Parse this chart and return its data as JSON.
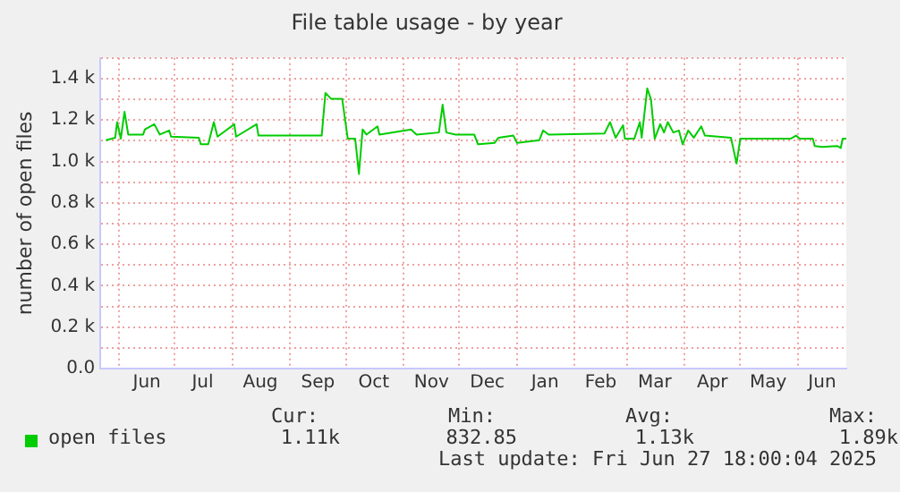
{
  "chart_data": {
    "type": "line",
    "title": "File table usage - by year",
    "ylabel": "number of open files",
    "xlim": [
      "2024-05-22",
      "2025-06-27"
    ],
    "xticks": [
      {
        "value": "2024-06-01",
        "label": null
      },
      {
        "value": "2024-06-16",
        "label": "Jun"
      },
      {
        "value": "2024-07-01",
        "label": null
      },
      {
        "value": "2024-07-16",
        "label": "Jul"
      },
      {
        "value": "2024-08-01",
        "label": null
      },
      {
        "value": "2024-08-16",
        "label": "Aug"
      },
      {
        "value": "2024-09-01",
        "label": null
      },
      {
        "value": "2024-09-16",
        "label": "Sep"
      },
      {
        "value": "2024-10-01",
        "label": null
      },
      {
        "value": "2024-10-16",
        "label": "Oct"
      },
      {
        "value": "2024-11-01",
        "label": null
      },
      {
        "value": "2024-11-16",
        "label": "Nov"
      },
      {
        "value": "2024-12-01",
        "label": null
      },
      {
        "value": "2024-12-16",
        "label": "Dec"
      },
      {
        "value": "2025-01-01",
        "label": null
      },
      {
        "value": "2025-01-16",
        "label": "Jan"
      },
      {
        "value": "2025-02-01",
        "label": null
      },
      {
        "value": "2025-02-15",
        "label": "Feb"
      },
      {
        "value": "2025-03-01",
        "label": null
      },
      {
        "value": "2025-03-16",
        "label": "Mar"
      },
      {
        "value": "2025-04-01",
        "label": null
      },
      {
        "value": "2025-04-16",
        "label": "Apr"
      },
      {
        "value": "2025-05-01",
        "label": null
      },
      {
        "value": "2025-05-16",
        "label": "May"
      },
      {
        "value": "2025-06-01",
        "label": null
      },
      {
        "value": "2025-06-14",
        "label": "Jun"
      }
    ],
    "ylim": [
      0,
      1500
    ],
    "yticks": [
      {
        "value": 0,
        "label": "0.0"
      },
      {
        "value": 100,
        "label": null
      },
      {
        "value": 200,
        "label": "0.2 k"
      },
      {
        "value": 300,
        "label": null
      },
      {
        "value": 400,
        "label": "0.4 k"
      },
      {
        "value": 500,
        "label": null
      },
      {
        "value": 600,
        "label": "0.6 k"
      },
      {
        "value": 700,
        "label": null
      },
      {
        "value": 800,
        "label": "0.8 k"
      },
      {
        "value": 900,
        "label": null
      },
      {
        "value": 1000,
        "label": "1.0 k"
      },
      {
        "value": 1100,
        "label": null
      },
      {
        "value": 1200,
        "label": "1.2 k"
      },
      {
        "value": 1300,
        "label": null
      },
      {
        "value": 1400,
        "label": "1.4 k"
      },
      {
        "value": 1500,
        "label": null
      }
    ],
    "grid": true,
    "legend": "bottom",
    "marker": "none",
    "x": [
      "2024-05-25",
      "2024-05-30",
      "2024-05-31",
      "2024-06-02",
      "2024-06-04",
      "2024-06-06",
      "2024-06-14",
      "2024-06-15",
      "2024-06-20",
      "2024-06-23",
      "2024-06-28",
      "2024-06-29",
      "2024-07-14",
      "2024-07-15",
      "2024-07-19",
      "2024-07-22",
      "2024-07-24",
      "2024-08-02",
      "2024-08-03",
      "2024-08-14",
      "2024-08-15",
      "2024-09-18",
      "2024-09-20",
      "2024-09-23",
      "2024-09-29",
      "2024-10-02",
      "2024-10-06",
      "2024-10-08",
      "2024-10-10",
      "2024-10-12",
      "2024-10-18",
      "2024-10-19",
      "2024-11-05",
      "2024-11-08",
      "2024-11-20",
      "2024-11-22",
      "2024-11-24",
      "2024-11-29",
      "2024-12-09",
      "2024-12-11",
      "2024-12-20",
      "2024-12-22",
      "2024-12-30",
      "2025-01-01",
      "2025-01-13",
      "2025-01-15",
      "2025-01-18",
      "2025-02-17",
      "2025-02-20",
      "2025-02-23",
      "2025-02-27",
      "2025-02-28",
      "2025-03-05",
      "2025-03-08",
      "2025-03-09",
      "2025-03-12",
      "2025-03-14",
      "2025-03-16",
      "2025-03-19",
      "2025-03-21",
      "2025-03-23",
      "2025-03-26",
      "2025-03-29",
      "2025-03-31",
      "2025-04-03",
      "2025-04-06",
      "2025-04-10",
      "2025-04-12",
      "2025-04-26",
      "2025-04-29",
      "2025-05-01",
      "2025-05-28",
      "2025-05-31",
      "2025-06-02",
      "2025-06-09",
      "2025-06-10",
      "2025-06-14",
      "2025-06-22",
      "2025-06-24",
      "2025-06-25",
      "2025-06-27"
    ],
    "series": [
      {
        "name": "open files",
        "color": "#00cc00",
        "values": [
          1103,
          1115,
          1190,
          1110,
          1240,
          1130,
          1130,
          1155,
          1180,
          1130,
          1150,
          1120,
          1115,
          1083,
          1083,
          1190,
          1120,
          1180,
          1120,
          1180,
          1125,
          1125,
          1331,
          1303,
          1303,
          1110,
          1110,
          940,
          1155,
          1130,
          1170,
          1130,
          1155,
          1130,
          1140,
          1274,
          1140,
          1130,
          1130,
          1083,
          1090,
          1115,
          1125,
          1090,
          1103,
          1150,
          1130,
          1135,
          1190,
          1115,
          1175,
          1110,
          1110,
          1190,
          1115,
          1353,
          1300,
          1110,
          1180,
          1140,
          1190,
          1140,
          1150,
          1083,
          1150,
          1115,
          1170,
          1125,
          1115,
          990,
          1110,
          1110,
          1125,
          1110,
          1110,
          1075,
          1070,
          1075,
          1065,
          1110,
          1110
        ]
      }
    ],
    "annotations": [
      "Cur:",
      "Min:",
      "Avg:",
      "Max:",
      "1.11k",
      "832.85",
      "1.13k",
      "1.89k",
      "Last update: Fri Jun 27 18:00:04 2025"
    ]
  }
}
